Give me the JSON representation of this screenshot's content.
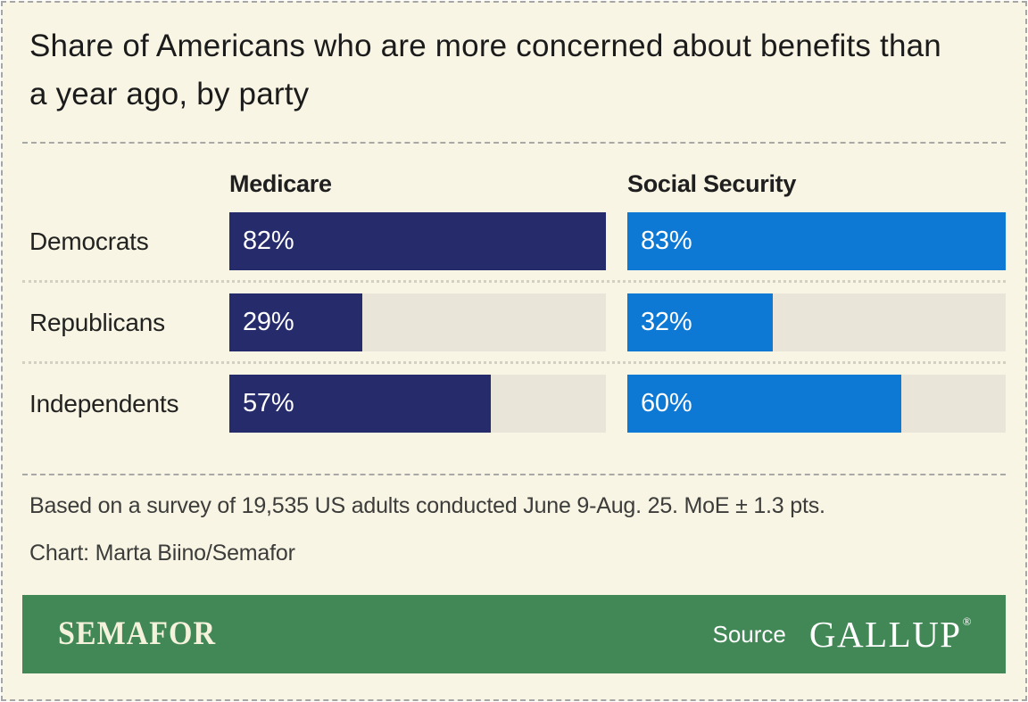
{
  "title": "Share of Americans who are more concerned about benefits than a year ago, by party",
  "chart_data": {
    "type": "bar",
    "orientation": "horizontal",
    "categories": [
      "Democrats",
      "Republicans",
      "Independents"
    ],
    "series": [
      {
        "name": "Medicare",
        "values": [
          82,
          29,
          57
        ],
        "color": "#262b6b"
      },
      {
        "name": "Social Security",
        "values": [
          83,
          32,
          60
        ],
        "color": "#0d79d4"
      }
    ],
    "value_suffix": "%",
    "value_labels": [
      [
        "82%",
        "83%"
      ],
      [
        "29%",
        "32%"
      ],
      [
        "57%",
        "60%"
      ]
    ],
    "bar_scaling": "each column scaled so its maximum value fills the track",
    "track_color": "#e9e6d9",
    "legend_position": "column headers above bars",
    "grid": false
  },
  "notes": {
    "methodology": "Based on a survey of 19,535 US adults conducted June 9-Aug. 25. MoE ± 1.3 pts.",
    "credit": "Chart: Marta Biino/Semafor"
  },
  "brandbar": {
    "publisher": "SEMAFOR",
    "source_label": "Source",
    "source_name": "GALLUP",
    "registered_mark": "®",
    "background": "#428857"
  },
  "colors": {
    "card_background": "#f8f5e4",
    "medicare_bar": "#262b6b",
    "social_security_bar": "#0d79d4",
    "bar_track": "#e9e6d9",
    "brand_green": "#428857",
    "title_text": "#1b1b1b",
    "bar_value_text": "#ffffff",
    "separator_dashed": "#a8a8a6",
    "separator_dotted": "#d3d0c2"
  }
}
